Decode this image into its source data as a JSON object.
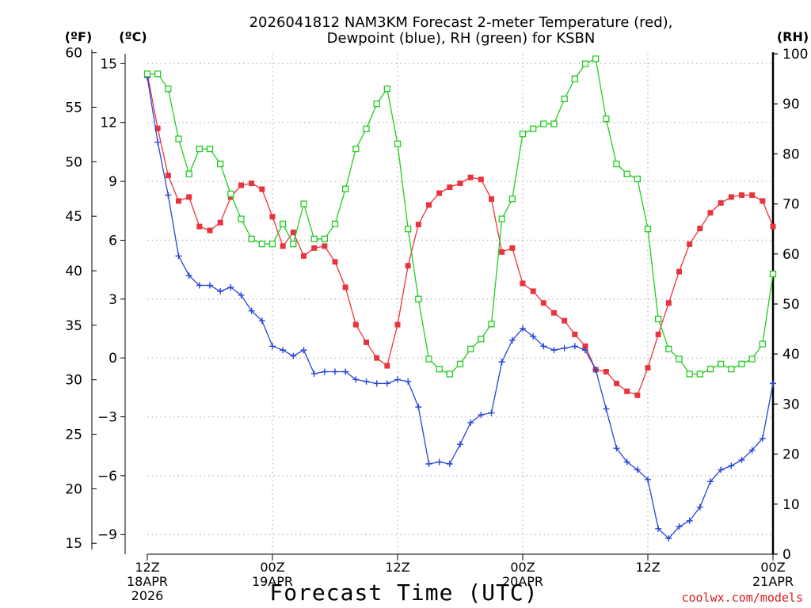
{
  "chart_data": {
    "type": "line",
    "title_line1": "2026041812 NAM3KM Forecast 2-meter Temperature (red),",
    "title_line2": "Dewpoint (blue), RH (green) for KSBN",
    "units": {
      "fahrenheit": "(ºF)",
      "celsius": "(ºC)",
      "rh": "(RH)"
    },
    "xlabel": "Forecast Time (UTC)",
    "credit": "coolwx.com/models",
    "x_range_hours": [
      0,
      60
    ],
    "x_ticks": [
      {
        "hour": 0,
        "lines": [
          "12Z",
          "18APR",
          "2026"
        ]
      },
      {
        "hour": 12,
        "lines": [
          "00Z",
          "19APR"
        ]
      },
      {
        "hour": 24,
        "lines": [
          "12Z"
        ]
      },
      {
        "hour": 36,
        "lines": [
          "00Z",
          "20APR"
        ]
      },
      {
        "hour": 48,
        "lines": [
          "12Z"
        ]
      },
      {
        "hour": 60,
        "lines": [
          "00Z",
          "21APR"
        ]
      }
    ],
    "y_celsius_range": [
      -10,
      15.5
    ],
    "y_celsius_ticks": [
      "15",
      "12",
      "9",
      "6",
      "3",
      "0",
      "−3",
      "−6",
      "−9"
    ],
    "y_fahrenheit_ticks": [
      "60",
      "55",
      "50",
      "45",
      "40",
      "35",
      "30",
      "25",
      "20",
      "15"
    ],
    "y_rh_range": [
      0,
      100
    ],
    "y_rh_ticks": [
      "100",
      "90",
      "80",
      "70",
      "60",
      "50",
      "40",
      "30",
      "20",
      "10",
      "0"
    ],
    "series": [
      {
        "name": "2-meter Temperature",
        "unit": "C",
        "color": "#e8343c",
        "marker": "filled-square",
        "x": [
          0,
          1,
          2,
          3,
          4,
          5,
          6,
          7,
          8,
          9,
          10,
          11,
          12,
          13,
          14,
          15,
          16,
          17,
          18,
          19,
          20,
          21,
          22,
          23,
          24,
          25,
          26,
          27,
          28,
          29,
          30,
          31,
          32,
          33,
          34,
          35,
          36,
          37,
          38,
          39,
          40,
          41,
          42,
          43,
          44,
          45,
          46,
          47,
          48,
          49,
          50,
          51,
          52,
          53,
          54,
          55,
          56,
          57,
          58,
          59,
          60
        ],
        "values": [
          14.5,
          11.7,
          9.3,
          8.0,
          8.2,
          6.7,
          6.5,
          6.9,
          8.2,
          8.8,
          8.9,
          8.6,
          7.2,
          5.7,
          6.4,
          5.2,
          5.6,
          5.7,
          4.9,
          3.6,
          1.7,
          0.8,
          0.0,
          -0.4,
          1.7,
          4.7,
          6.8,
          7.8,
          8.4,
          8.7,
          8.9,
          9.2,
          9.1,
          8.1,
          5.4,
          5.6,
          3.8,
          3.4,
          2.8,
          2.3,
          1.9,
          1.2,
          0.6,
          -0.6,
          -0.7,
          -1.3,
          -1.7,
          -1.9,
          -0.5,
          1.2,
          2.8,
          4.4,
          5.8,
          6.6,
          7.4,
          7.9,
          8.2,
          8.3,
          8.3,
          8.0,
          6.7
        ]
      },
      {
        "name": "Dewpoint",
        "unit": "C",
        "color": "#2845d8",
        "marker": "plus",
        "x": [
          0,
          1,
          2,
          3,
          4,
          5,
          6,
          7,
          8,
          9,
          10,
          11,
          12,
          13,
          14,
          15,
          16,
          17,
          18,
          19,
          20,
          21,
          22,
          23,
          24,
          25,
          26,
          27,
          28,
          29,
          30,
          31,
          32,
          33,
          34,
          35,
          36,
          37,
          38,
          39,
          40,
          41,
          42,
          43,
          44,
          45,
          46,
          47,
          48,
          49,
          50,
          51,
          52,
          53,
          54,
          55,
          56,
          57,
          58,
          59,
          60
        ],
        "values": [
          14.3,
          11.0,
          8.3,
          5.2,
          4.2,
          3.7,
          3.7,
          3.4,
          3.6,
          3.2,
          2.4,
          1.9,
          0.6,
          0.4,
          0.1,
          0.4,
          -0.8,
          -0.7,
          -0.7,
          -0.7,
          -1.1,
          -1.2,
          -1.3,
          -1.3,
          -1.1,
          -1.2,
          -2.5,
          -5.4,
          -5.3,
          -5.4,
          -4.4,
          -3.3,
          -2.9,
          -2.8,
          -0.2,
          0.9,
          1.5,
          1.1,
          0.6,
          0.4,
          0.5,
          0.6,
          0.4,
          -0.6,
          -2.6,
          -4.6,
          -5.3,
          -5.7,
          -6.2,
          -8.7,
          -9.2,
          -8.6,
          -8.3,
          -7.6,
          -6.3,
          -5.7,
          -5.5,
          -5.2,
          -4.7,
          -4.1,
          -1.3
        ]
      },
      {
        "name": "RH",
        "unit": "%",
        "color": "#22cc22",
        "marker": "open-square",
        "x": [
          0,
          1,
          2,
          3,
          4,
          5,
          6,
          7,
          8,
          9,
          10,
          11,
          12,
          13,
          14,
          15,
          16,
          17,
          18,
          19,
          20,
          21,
          22,
          23,
          24,
          25,
          26,
          27,
          28,
          29,
          30,
          31,
          32,
          33,
          34,
          35,
          36,
          37,
          38,
          39,
          40,
          41,
          42,
          43,
          44,
          45,
          46,
          47,
          48,
          49,
          50,
          51,
          52,
          53,
          54,
          55,
          56,
          57,
          58,
          59,
          60
        ],
        "values": [
          96,
          96,
          93,
          83,
          76,
          81,
          81,
          78,
          72,
          67,
          63,
          62,
          62,
          66,
          62,
          70,
          63,
          63,
          66,
          73,
          81,
          85,
          90,
          93,
          82,
          65,
          51,
          39,
          37,
          36,
          38,
          41,
          43,
          46,
          67,
          71,
          84,
          85,
          86,
          86,
          91,
          95,
          98,
          99,
          87,
          78,
          76,
          75,
          65,
          47,
          41,
          39,
          36,
          36,
          37,
          38,
          37,
          38,
          39,
          42,
          56
        ]
      }
    ]
  }
}
